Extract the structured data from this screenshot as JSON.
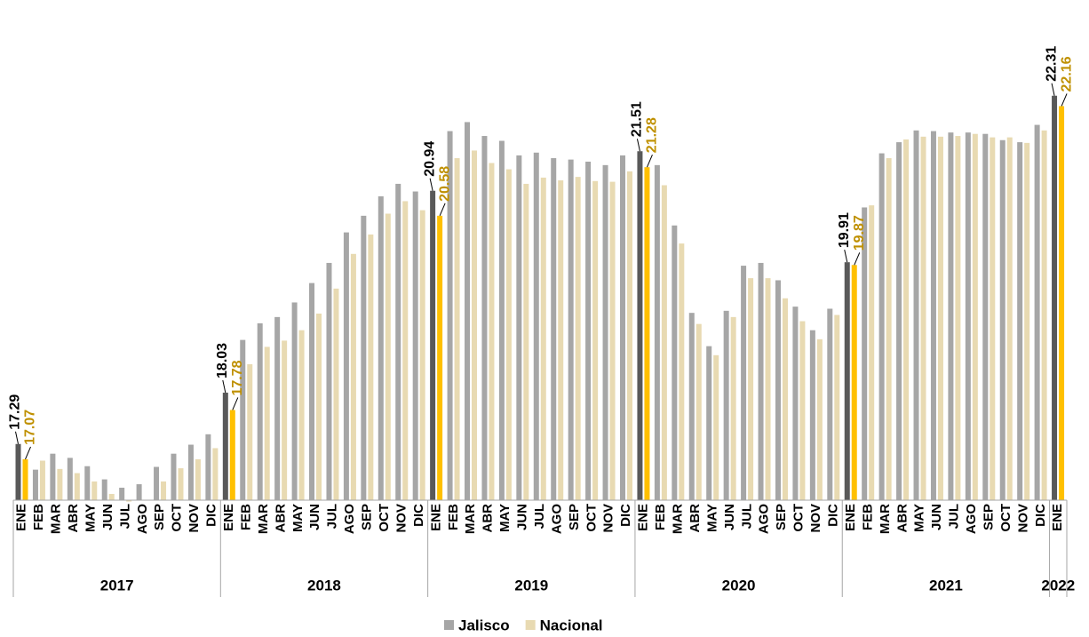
{
  "chart_data": {
    "type": "bar",
    "categories": [
      "ENE",
      "FEB",
      "MAR",
      "ABR",
      "MAY",
      "JUN",
      "JUL",
      "AGO",
      "SEP",
      "OCT",
      "NOV",
      "DIC",
      "ENE",
      "FEB",
      "MAR",
      "ABR",
      "MAY",
      "JUN",
      "JUL",
      "AGO",
      "SEP",
      "OCT",
      "NOV",
      "DIC",
      "ENE",
      "FEB",
      "MAR",
      "ABR",
      "MAY",
      "JUN",
      "JUL",
      "AGO",
      "SEP",
      "OCT",
      "NOV",
      "DIC",
      "ENE",
      "FEB",
      "MAR",
      "ABR",
      "MAY",
      "JUN",
      "JUL",
      "AGO",
      "SEP",
      "OCT",
      "NOV",
      "DIC",
      "ENE",
      "FEB",
      "MAR",
      "ABR",
      "MAY",
      "JUN",
      "JUL",
      "AGO",
      "SEP",
      "OCT",
      "NOV",
      "DIC",
      "ENE"
    ],
    "years": [
      "2017",
      "2018",
      "2019",
      "2020",
      "2021",
      "2022"
    ],
    "series": [
      {
        "name": "Jalisco",
        "color": "#a6a6a6",
        "highlight_color": "#595959",
        "label_color": "#000000",
        "values": [
          17.29,
          16.92,
          17.15,
          17.09,
          16.97,
          16.78,
          16.66,
          16.71,
          16.96,
          17.15,
          17.28,
          17.43,
          18.03,
          18.79,
          19.03,
          19.12,
          19.33,
          19.61,
          19.9,
          20.34,
          20.58,
          20.86,
          21.04,
          20.93,
          20.94,
          21.8,
          21.93,
          21.73,
          21.66,
          21.45,
          21.49,
          21.41,
          21.39,
          21.36,
          21.31,
          21.45,
          21.51,
          21.31,
          20.44,
          19.18,
          18.7,
          19.21,
          19.86,
          19.9,
          19.65,
          19.27,
          18.93,
          19.24,
          19.91,
          20.7,
          21.48,
          21.64,
          21.81,
          21.8,
          21.78,
          21.78,
          21.76,
          21.67,
          21.64,
          21.89,
          22.31
        ],
        "value_labels": [
          "17.29",
          null,
          null,
          null,
          null,
          null,
          null,
          null,
          null,
          null,
          null,
          null,
          "18.03",
          null,
          null,
          null,
          null,
          null,
          null,
          null,
          null,
          null,
          null,
          null,
          "20.94",
          null,
          null,
          null,
          null,
          null,
          null,
          null,
          null,
          null,
          null,
          null,
          "21.51",
          null,
          null,
          null,
          null,
          null,
          null,
          null,
          null,
          null,
          null,
          null,
          "19.91",
          null,
          null,
          null,
          null,
          null,
          null,
          null,
          null,
          null,
          null,
          null,
          "22.31"
        ]
      },
      {
        "name": "Nacional",
        "color": "#e8dab2",
        "highlight_color": "#ffc000",
        "label_color": "#bf9000",
        "values": [
          17.07,
          17.05,
          16.93,
          16.87,
          16.75,
          16.57,
          16.46,
          16.48,
          16.75,
          16.94,
          17.07,
          17.23,
          17.78,
          18.44,
          18.69,
          18.78,
          18.93,
          19.17,
          19.53,
          20.03,
          20.31,
          20.61,
          20.79,
          20.66,
          20.58,
          21.41,
          21.52,
          21.34,
          21.25,
          21.04,
          21.13,
          21.09,
          21.14,
          21.08,
          21.07,
          21.22,
          21.28,
          21.02,
          20.18,
          19.02,
          18.57,
          19.12,
          19.68,
          19.68,
          19.39,
          19.06,
          18.8,
          19.15,
          19.87,
          20.73,
          21.41,
          21.68,
          21.72,
          21.72,
          21.73,
          21.76,
          21.71,
          21.71,
          21.63,
          21.81,
          22.16
        ],
        "value_labels": [
          "17.07",
          null,
          null,
          null,
          null,
          null,
          null,
          null,
          null,
          null,
          null,
          null,
          "17.78",
          null,
          null,
          null,
          null,
          null,
          null,
          null,
          null,
          null,
          null,
          null,
          "20.58",
          null,
          null,
          null,
          null,
          null,
          null,
          null,
          null,
          null,
          null,
          null,
          "21.28",
          null,
          null,
          null,
          null,
          null,
          null,
          null,
          null,
          null,
          null,
          null,
          "19.87",
          null,
          null,
          null,
          null,
          null,
          null,
          null,
          null,
          null,
          null,
          null,
          "22.16"
        ]
      }
    ],
    "ylim": [
      16.48,
      23.69
    ]
  }
}
